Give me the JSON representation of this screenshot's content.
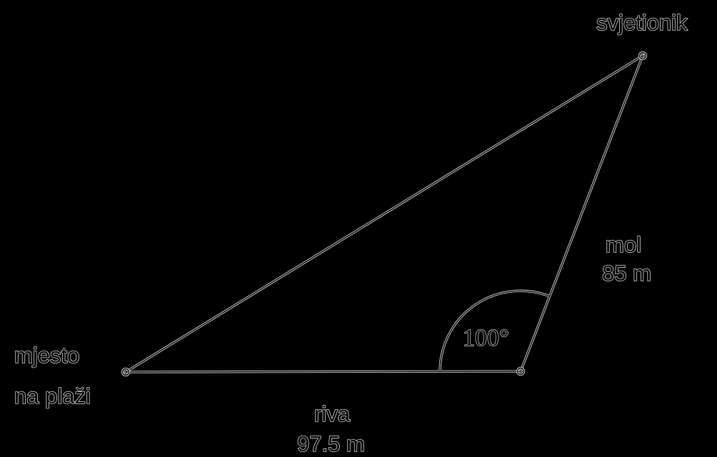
{
  "labels": {
    "lighthouse": "svjetionik",
    "place_line1": "mjesto",
    "place_line2": "na plaži",
    "pier_name": "mol",
    "pier_length": "85 m",
    "waterfront_name": "riva",
    "waterfront_length": "97.5 m",
    "angle": "100°"
  },
  "colors": {
    "background": "#000000",
    "line": "#000000",
    "outline": "#d8d8d8"
  }
}
